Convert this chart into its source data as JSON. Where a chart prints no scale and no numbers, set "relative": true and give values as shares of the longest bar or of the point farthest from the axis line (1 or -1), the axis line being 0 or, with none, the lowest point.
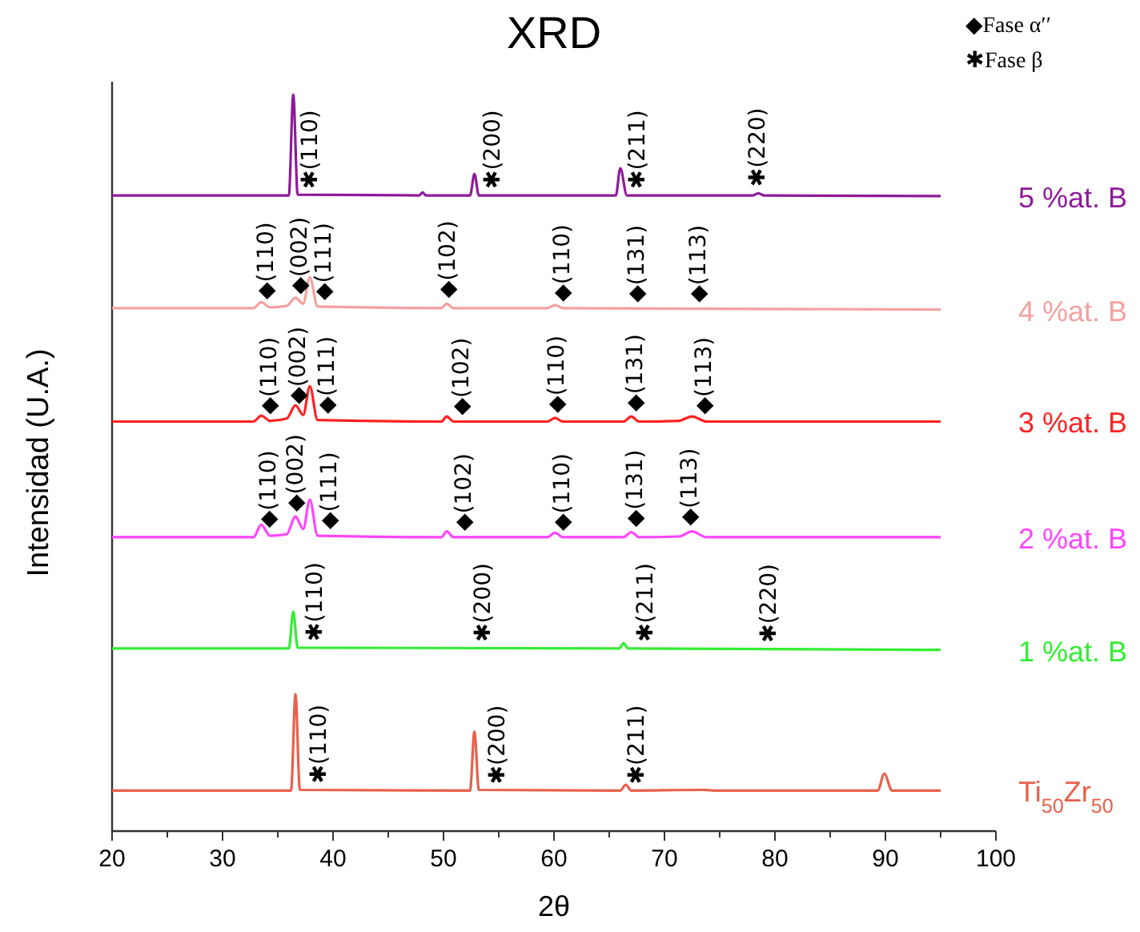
{
  "chart_data": {
    "type": "line",
    "title": "XRD",
    "xlabel": "2θ",
    "ylabel": "Intensidad (U.A.)",
    "relative": true,
    "xlim": [
      20,
      100
    ],
    "xticks": [
      20,
      {
        "value": 25,
        "label": null
      },
      30,
      {
        "value": 35,
        "label": null
      },
      40,
      {
        "value": 45,
        "label": null
      },
      50,
      {
        "value": 55,
        "label": null
      },
      60,
      {
        "value": 65,
        "label": null
      },
      70,
      {
        "value": 75,
        "label": null
      },
      80,
      {
        "value": 85,
        "label": null
      },
      90,
      {
        "value": 95,
        "label": null
      },
      100
    ],
    "series": [
      {
        "name": "5 %at. B",
        "color": "#8e1a9a",
        "x": [
          20,
          36.0,
          36.4,
          36.8,
          47.8,
          48.1,
          48.4,
          52.4,
          52.8,
          53.2,
          65.6,
          66.0,
          66.6,
          78.0,
          78.5,
          79.0,
          95
        ],
        "values": [
          0.863,
          0.863,
          1.0,
          0.864,
          0.863,
          0.867,
          0.863,
          0.863,
          0.892,
          0.863,
          0.863,
          0.9,
          0.863,
          0.863,
          0.866,
          0.863,
          0.862
        ]
      },
      {
        "name": "4 %at. B",
        "color": "#f4a0a0",
        "x": [
          20,
          32.8,
          33.5,
          34.3,
          35.8,
          36.6,
          37.3,
          37.9,
          38.6,
          49.8,
          50.3,
          50.9,
          59.4,
          60.1,
          60.8,
          95
        ],
        "values": [
          0.71,
          0.71,
          0.718,
          0.711,
          0.713,
          0.724,
          0.716,
          0.752,
          0.712,
          0.71,
          0.716,
          0.71,
          0.71,
          0.714,
          0.71,
          0.708
        ]
      },
      {
        "name": "3 %at. B",
        "color": "#ff2222",
        "x": [
          20,
          32.8,
          33.5,
          34.3,
          35.8,
          36.6,
          37.3,
          37.9,
          38.6,
          49.8,
          50.3,
          50.9,
          59.4,
          60.1,
          60.8,
          66.3,
          67.0,
          67.7,
          71.3,
          72.5,
          73.8,
          95
        ],
        "values": [
          0.556,
          0.556,
          0.564,
          0.557,
          0.56,
          0.578,
          0.565,
          0.604,
          0.558,
          0.556,
          0.563,
          0.556,
          0.556,
          0.561,
          0.556,
          0.556,
          0.563,
          0.556,
          0.557,
          0.563,
          0.556,
          0.556
        ]
      },
      {
        "name": "2 %at. B",
        "color": "#ff44ff",
        "x": [
          20,
          32.8,
          33.5,
          34.3,
          35.8,
          36.6,
          37.3,
          37.9,
          38.6,
          49.8,
          50.3,
          50.9,
          59.4,
          60.1,
          60.8,
          66.3,
          67.0,
          67.7,
          71.3,
          72.5,
          73.8,
          95
        ],
        "values": [
          0.399,
          0.399,
          0.416,
          0.401,
          0.403,
          0.427,
          0.41,
          0.45,
          0.401,
          0.399,
          0.407,
          0.399,
          0.399,
          0.405,
          0.399,
          0.399,
          0.406,
          0.399,
          0.4,
          0.407,
          0.399,
          0.399
        ]
      },
      {
        "name": "1 %at. B",
        "color": "#33ee33",
        "x": [
          20,
          36.0,
          36.4,
          36.8,
          65.9,
          66.3,
          66.7,
          95
        ],
        "values": [
          0.248,
          0.248,
          0.298,
          0.249,
          0.248,
          0.255,
          0.248,
          0.246
        ]
      },
      {
        "name": "Ti$_{50}$Zr$_{50}$",
        "color": "#e8604a",
        "x": [
          20,
          36.2,
          36.6,
          37.0,
          52.4,
          52.8,
          53.2,
          66.0,
          66.5,
          67.0,
          73.5,
          74.5,
          89.3,
          89.9,
          90.6,
          95
        ],
        "values": [
          0.055,
          0.055,
          0.186,
          0.056,
          0.055,
          0.135,
          0.056,
          0.055,
          0.063,
          0.055,
          0.056,
          0.055,
          0.055,
          0.078,
          0.055,
          0.055
        ]
      }
    ],
    "annotations": [
      "◆Fase α′′",
      "✱Fase β",
      {
        "text": "✱(110)",
        "x": 38.0,
        "y": 0.863
      },
      {
        "text": "✱(200)",
        "x": 54.5,
        "y": 0.863
      },
      {
        "text": "✱(211)",
        "x": 67.6,
        "y": 0.863
      },
      {
        "text": "✱(220)",
        "x": 78.5,
        "y": 0.866
      },
      {
        "text": "◆(110)",
        "x": 34.0,
        "y": 0.713
      },
      {
        "text": "◆(002)",
        "x": 37.0,
        "y": 0.72
      },
      {
        "text": "◆(111)",
        "x": 39.2,
        "y": 0.712
      },
      {
        "text": "◆(102)",
        "x": 50.4,
        "y": 0.715
      },
      {
        "text": "◆(110)",
        "x": 60.8,
        "y": 0.71
      },
      {
        "text": "◆(131)",
        "x": 67.5,
        "y": 0.709
      },
      {
        "text": "◆(113)",
        "x": 73.1,
        "y": 0.709
      },
      {
        "text": "◆(110)",
        "x": 34.3,
        "y": 0.557
      },
      {
        "text": "◆(002)",
        "x": 36.9,
        "y": 0.571
      },
      {
        "text": "◆(111)",
        "x": 39.5,
        "y": 0.558
      },
      {
        "text": "◆(102)",
        "x": 51.7,
        "y": 0.556
      },
      {
        "text": "◆(110)",
        "x": 60.3,
        "y": 0.559
      },
      {
        "text": "◆(131)",
        "x": 67.4,
        "y": 0.561
      },
      {
        "text": "◆(113)",
        "x": 73.6,
        "y": 0.557
      },
      {
        "text": "◆(110)",
        "x": 34.2,
        "y": 0.403
      },
      {
        "text": "◆(002)",
        "x": 36.7,
        "y": 0.425
      },
      {
        "text": "◆(111)",
        "x": 39.7,
        "y": 0.401
      },
      {
        "text": "◆(102)",
        "x": 51.9,
        "y": 0.399
      },
      {
        "text": "◆(110)",
        "x": 60.8,
        "y": 0.399
      },
      {
        "text": "◆(131)",
        "x": 67.4,
        "y": 0.404
      },
      {
        "text": "◆(113)",
        "x": 72.3,
        "y": 0.406
      },
      {
        "text": "✱(110)",
        "x": 38.4,
        "y": 0.249
      },
      {
        "text": "✱(200)",
        "x": 53.6,
        "y": 0.248
      },
      {
        "text": "✱(211)",
        "x": 68.3,
        "y": 0.248
      },
      {
        "text": "✱(220)",
        "x": 79.5,
        "y": 0.247
      },
      {
        "text": "✱(110)",
        "x": 38.8,
        "y": 0.056
      },
      {
        "text": "✱(200)",
        "x": 54.9,
        "y": 0.055
      },
      {
        "text": "✱(211)",
        "x": 67.5,
        "y": 0.055
      }
    ]
  }
}
